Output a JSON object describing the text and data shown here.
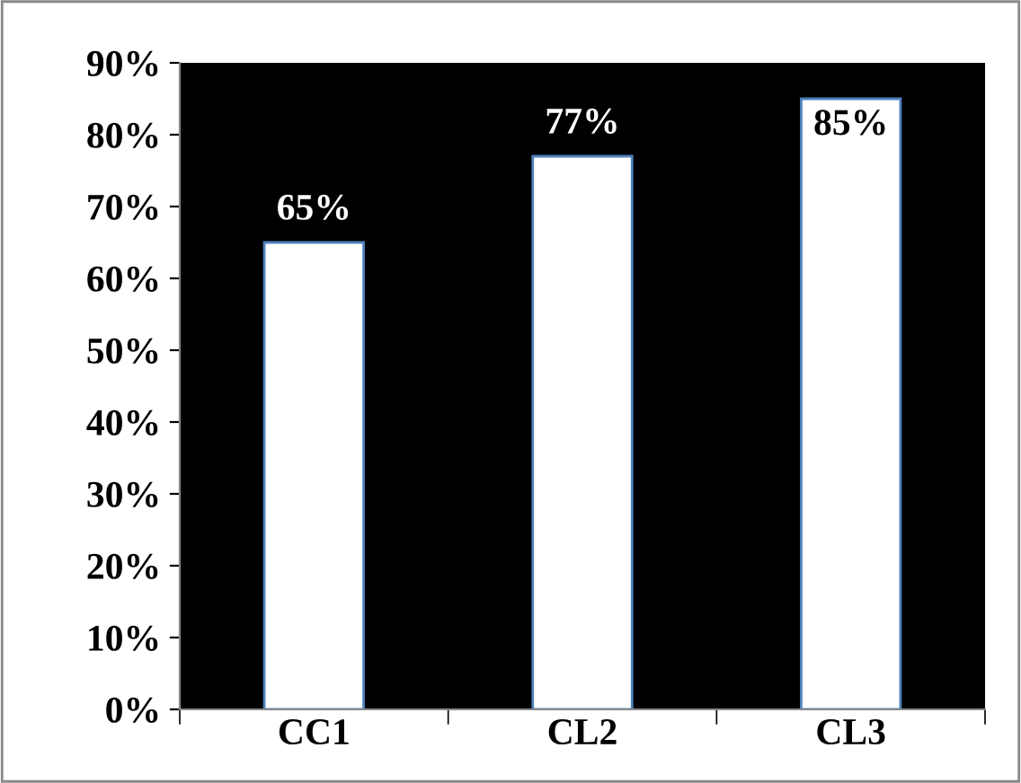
{
  "chart_data": {
    "type": "bar",
    "categories": [
      "CC1",
      "CL2",
      "CL3"
    ],
    "values": [
      65,
      77,
      85
    ],
    "value_labels": [
      "65%",
      "77%",
      "85%"
    ],
    "color": "#ffffff",
    "ylim": [
      0,
      90
    ],
    "yticks": [
      {
        "value": 0,
        "label": "0%"
      },
      {
        "value": 10,
        "label": "10%"
      },
      {
        "value": 20,
        "label": "20%"
      },
      {
        "value": 30,
        "label": "30%"
      },
      {
        "value": 40,
        "label": "40%"
      },
      {
        "value": 50,
        "label": "50%"
      },
      {
        "value": 60,
        "label": "60%"
      },
      {
        "value": 70,
        "label": "70%"
      },
      {
        "value": 80,
        "label": "80%"
      },
      {
        "value": 90,
        "label": "90%"
      }
    ],
    "grid": false,
    "legend": false
  }
}
